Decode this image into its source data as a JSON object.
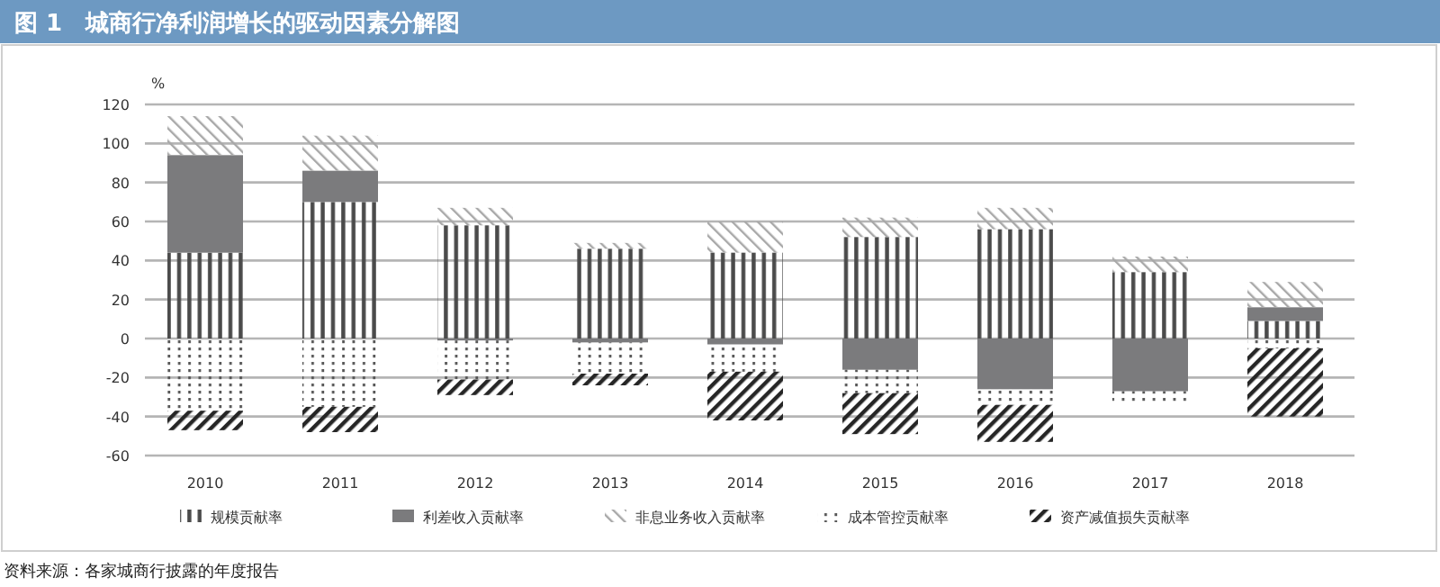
{
  "chart_data": {
    "type": "bar",
    "stacked": true,
    "title": "图 1　城商行净利润增长的驱动因素分解图",
    "ylabel": "%",
    "categories": [
      "2010",
      "2011",
      "2012",
      "2013",
      "2014",
      "2015",
      "2016",
      "2017",
      "2018"
    ],
    "series": [
      {
        "name": "规模贡献率",
        "color": "#4a4a4a",
        "values": [
          44,
          70,
          58,
          46,
          44,
          52,
          56,
          34,
          9
        ]
      },
      {
        "name": "利差收入贡献率",
        "color": "#7b7b7d",
        "values": [
          50,
          16,
          -1,
          -2,
          -3,
          -16,
          -26,
          -27,
          7
        ]
      },
      {
        "name": "非息业务收入贡献率",
        "color": "#a8a8a8",
        "values": [
          20,
          18,
          9,
          3,
          16,
          10,
          11,
          8,
          13
        ]
      },
      {
        "name": "成本管控贡献率",
        "color": "#555555",
        "values": [
          -37,
          -35,
          -20,
          -16,
          -14,
          -12,
          -8,
          -6,
          -5
        ]
      },
      {
        "name": "资产减值损失贡献率",
        "color": "#262626",
        "values": [
          -10,
          -13,
          -8,
          -6,
          -25,
          -21,
          -19,
          null,
          -35
        ]
      }
    ],
    "ylim": [
      -60,
      120
    ],
    "yticks": [
      -60,
      -40,
      -20,
      0,
      20,
      40,
      60,
      80,
      100,
      120
    ],
    "grid": "y",
    "legend": "bottom",
    "annotations": [
      "资料来源：各家城商行披露的年度报告"
    ]
  }
}
